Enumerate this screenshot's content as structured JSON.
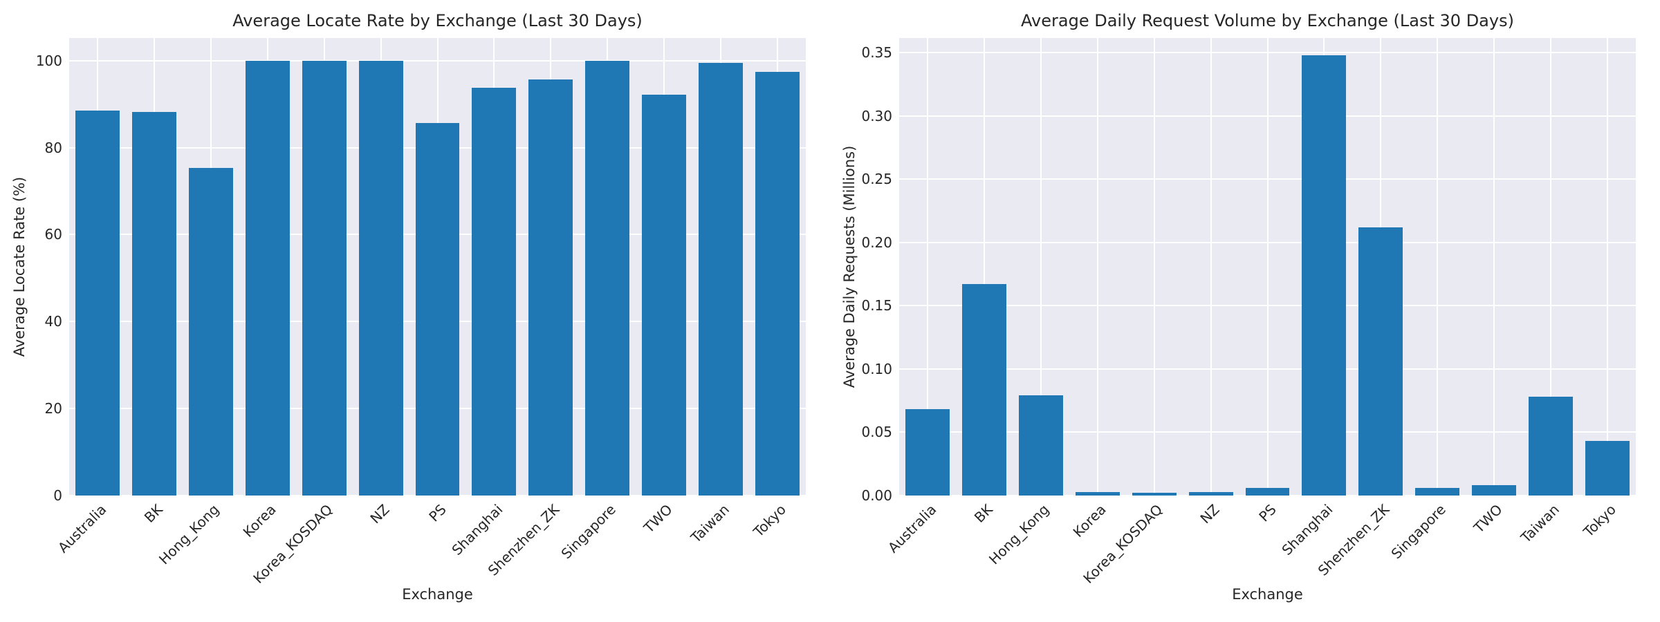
{
  "figure": {
    "background_color": "#ffffff",
    "plot_background_color": "#eaeaf2",
    "grid_color": "#ffffff",
    "bar_color": "#1f77b4",
    "text_color": "#262626"
  },
  "chart_data": [
    {
      "type": "bar",
      "title": "Average Locate Rate by Exchange (Last 30 Days)",
      "xlabel": "Exchange",
      "ylabel": "Average Locate Rate (%)",
      "categories": [
        "Australia",
        "BK",
        "Hong_Kong",
        "Korea",
        "Korea_KOSDAQ",
        "NZ",
        "PS",
        "Shanghai",
        "Shenzhen_ZK",
        "Singapore",
        "TWO",
        "Taiwan",
        "Tokyo"
      ],
      "values": [
        88.5,
        88.2,
        75.4,
        100,
        100,
        100,
        85.7,
        93.7,
        95.7,
        100,
        92.1,
        99.5,
        97.4
      ],
      "yticks": [
        0,
        20,
        40,
        60,
        80,
        100
      ],
      "ytick_labels": [
        "0",
        "20",
        "40",
        "60",
        "80",
        "100"
      ],
      "ylim": [
        0,
        105.2
      ],
      "grid": true,
      "legend": null
    },
    {
      "type": "bar",
      "title": "Average Daily Request Volume by Exchange (Last 30 Days)",
      "xlabel": "Exchange",
      "ylabel": "Average Daily Requests (Millions)",
      "categories": [
        "Australia",
        "BK",
        "Hong_Kong",
        "Korea",
        "Korea_KOSDAQ",
        "NZ",
        "PS",
        "Shanghai",
        "Shenzhen_ZK",
        "Singapore",
        "TWO",
        "Taiwan",
        "Tokyo"
      ],
      "values": [
        0.068,
        0.167,
        0.079,
        0.003,
        0.002,
        0.003,
        0.006,
        0.348,
        0.212,
        0.006,
        0.008,
        0.078,
        0.043
      ],
      "yticks": [
        0.0,
        0.05,
        0.1,
        0.15,
        0.2,
        0.25,
        0.3,
        0.35
      ],
      "ytick_labels": [
        "0.00",
        "0.05",
        "0.10",
        "0.15",
        "0.20",
        "0.25",
        "0.30",
        "0.35"
      ],
      "ylim": [
        0,
        0.3615
      ],
      "grid": true,
      "legend": null
    }
  ]
}
